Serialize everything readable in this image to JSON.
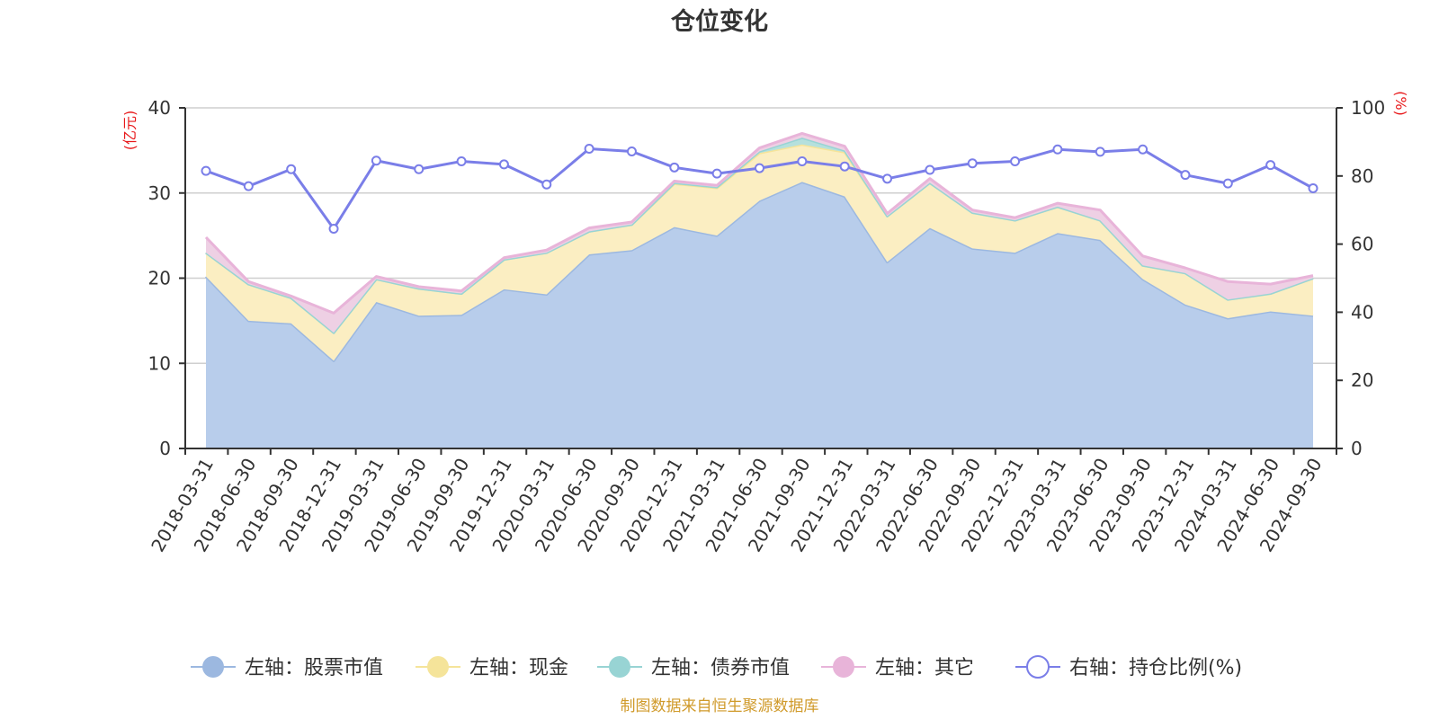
{
  "chart_data": {
    "type": "area",
    "title": "仓位变化",
    "left_axis_unit": "(亿元)",
    "right_axis_unit": "(%)",
    "ylim_left": [
      0,
      40
    ],
    "ylim_right": [
      0,
      100
    ],
    "yticks_left": [
      0,
      10,
      20,
      30,
      40
    ],
    "yticks_right": [
      0,
      20,
      40,
      60,
      80,
      100
    ],
    "grid": true,
    "legend_position": "bottom",
    "source": "制图数据来自恒生聚源数据库",
    "categories": [
      "2018-03-31",
      "2018-06-30",
      "2018-09-30",
      "2018-12-31",
      "2019-03-31",
      "2019-06-30",
      "2019-09-30",
      "2019-12-31",
      "2020-03-31",
      "2020-06-30",
      "2020-09-30",
      "2020-12-31",
      "2021-03-31",
      "2021-06-30",
      "2021-09-30",
      "2021-12-31",
      "2022-03-31",
      "2022-06-30",
      "2022-09-30",
      "2022-12-31",
      "2023-03-31",
      "2023-06-30",
      "2023-09-30",
      "2023-12-31",
      "2024-03-31",
      "2024-06-30",
      "2024-09-30"
    ],
    "series": [
      {
        "name": "左轴：股票市值",
        "axis": "left",
        "kind": "stacked-area",
        "color": "#9cb8e0",
        "fill": "#b8cdeb",
        "values": [
          20.2,
          15.0,
          14.7,
          10.3,
          17.2,
          15.6,
          15.7,
          18.7,
          18.1,
          22.8,
          23.3,
          26.0,
          25.0,
          29.1,
          31.3,
          29.6,
          21.9,
          25.9,
          23.5,
          23.0,
          25.3,
          24.5,
          19.9,
          16.9,
          15.3,
          16.1,
          15.6
        ]
      },
      {
        "name": "左轴：现金",
        "axis": "left",
        "kind": "stacked-area",
        "color": "#f5e49a",
        "fill": "#fbeec2",
        "values": [
          2.8,
          4.3,
          3.0,
          3.3,
          2.7,
          3.2,
          2.5,
          3.5,
          4.9,
          2.7,
          3.0,
          5.1,
          5.6,
          5.6,
          4.4,
          5.2,
          5.4,
          5.3,
          4.2,
          3.8,
          3.1,
          2.3,
          1.6,
          3.7,
          2.2,
          2.1,
          4.4
        ]
      },
      {
        "name": "左轴：债券市值",
        "axis": "left",
        "kind": "stacked-area",
        "color": "#98d4d4",
        "fill": "#b5e0dd",
        "values": [
          0,
          0,
          0,
          0,
          0,
          0,
          0,
          0,
          0,
          0,
          0,
          0.1,
          0.1,
          0.2,
          0.8,
          0.2,
          0,
          0,
          0,
          0,
          0,
          0,
          0,
          0,
          0,
          0,
          0
        ]
      },
      {
        "name": "左轴：其它",
        "axis": "left",
        "kind": "stacked-area",
        "color": "#e8b4d9",
        "fill": "#eed0e4",
        "values": [
          1.8,
          0.3,
          0.2,
          2.3,
          0.3,
          0.2,
          0.3,
          0.2,
          0.3,
          0.4,
          0.3,
          0.2,
          0.2,
          0.4,
          0.5,
          0.5,
          0.3,
          0.5,
          0.3,
          0.3,
          0.4,
          1.2,
          1.1,
          0.6,
          2.1,
          1.1,
          0.3
        ]
      },
      {
        "name": "右轴：持仓比例(%)",
        "axis": "right",
        "kind": "line",
        "color": "#7a7ee8",
        "values": [
          81.5,
          77.0,
          82.0,
          64.5,
          84.5,
          82.0,
          84.3,
          83.4,
          77.5,
          88.0,
          87.2,
          82.5,
          80.7,
          82.3,
          84.3,
          82.8,
          79.2,
          81.8,
          83.7,
          84.3,
          87.8,
          87.1,
          87.8,
          80.3,
          77.8,
          83.2,
          76.4
        ]
      }
    ]
  }
}
